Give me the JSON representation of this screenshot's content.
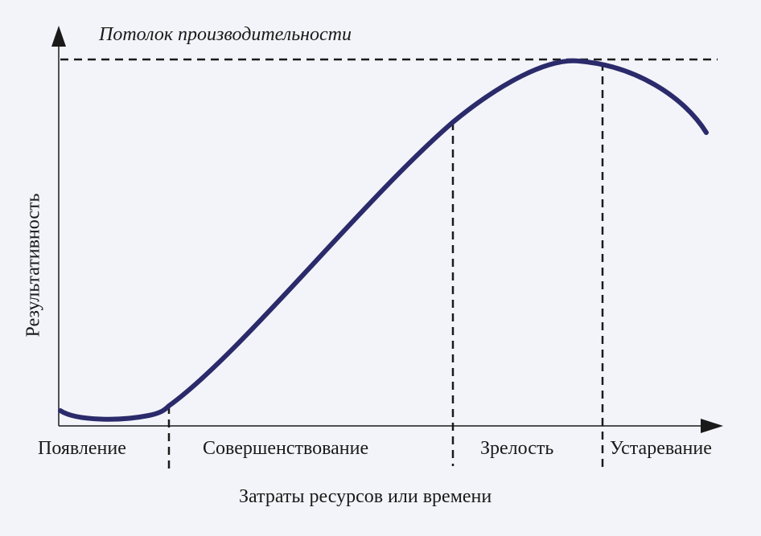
{
  "ceiling_label": "Потолок производительности",
  "y_axis_label": "Результативность",
  "x_axis_label": "Затраты ресурсов или времени",
  "stages": [
    "Появление",
    "Совершенствование",
    "Зрелость",
    "Устаревание"
  ],
  "colors": {
    "curve": "#2b2a6b",
    "axes": "#1a1a1a",
    "background": "#f3f4f9"
  }
}
